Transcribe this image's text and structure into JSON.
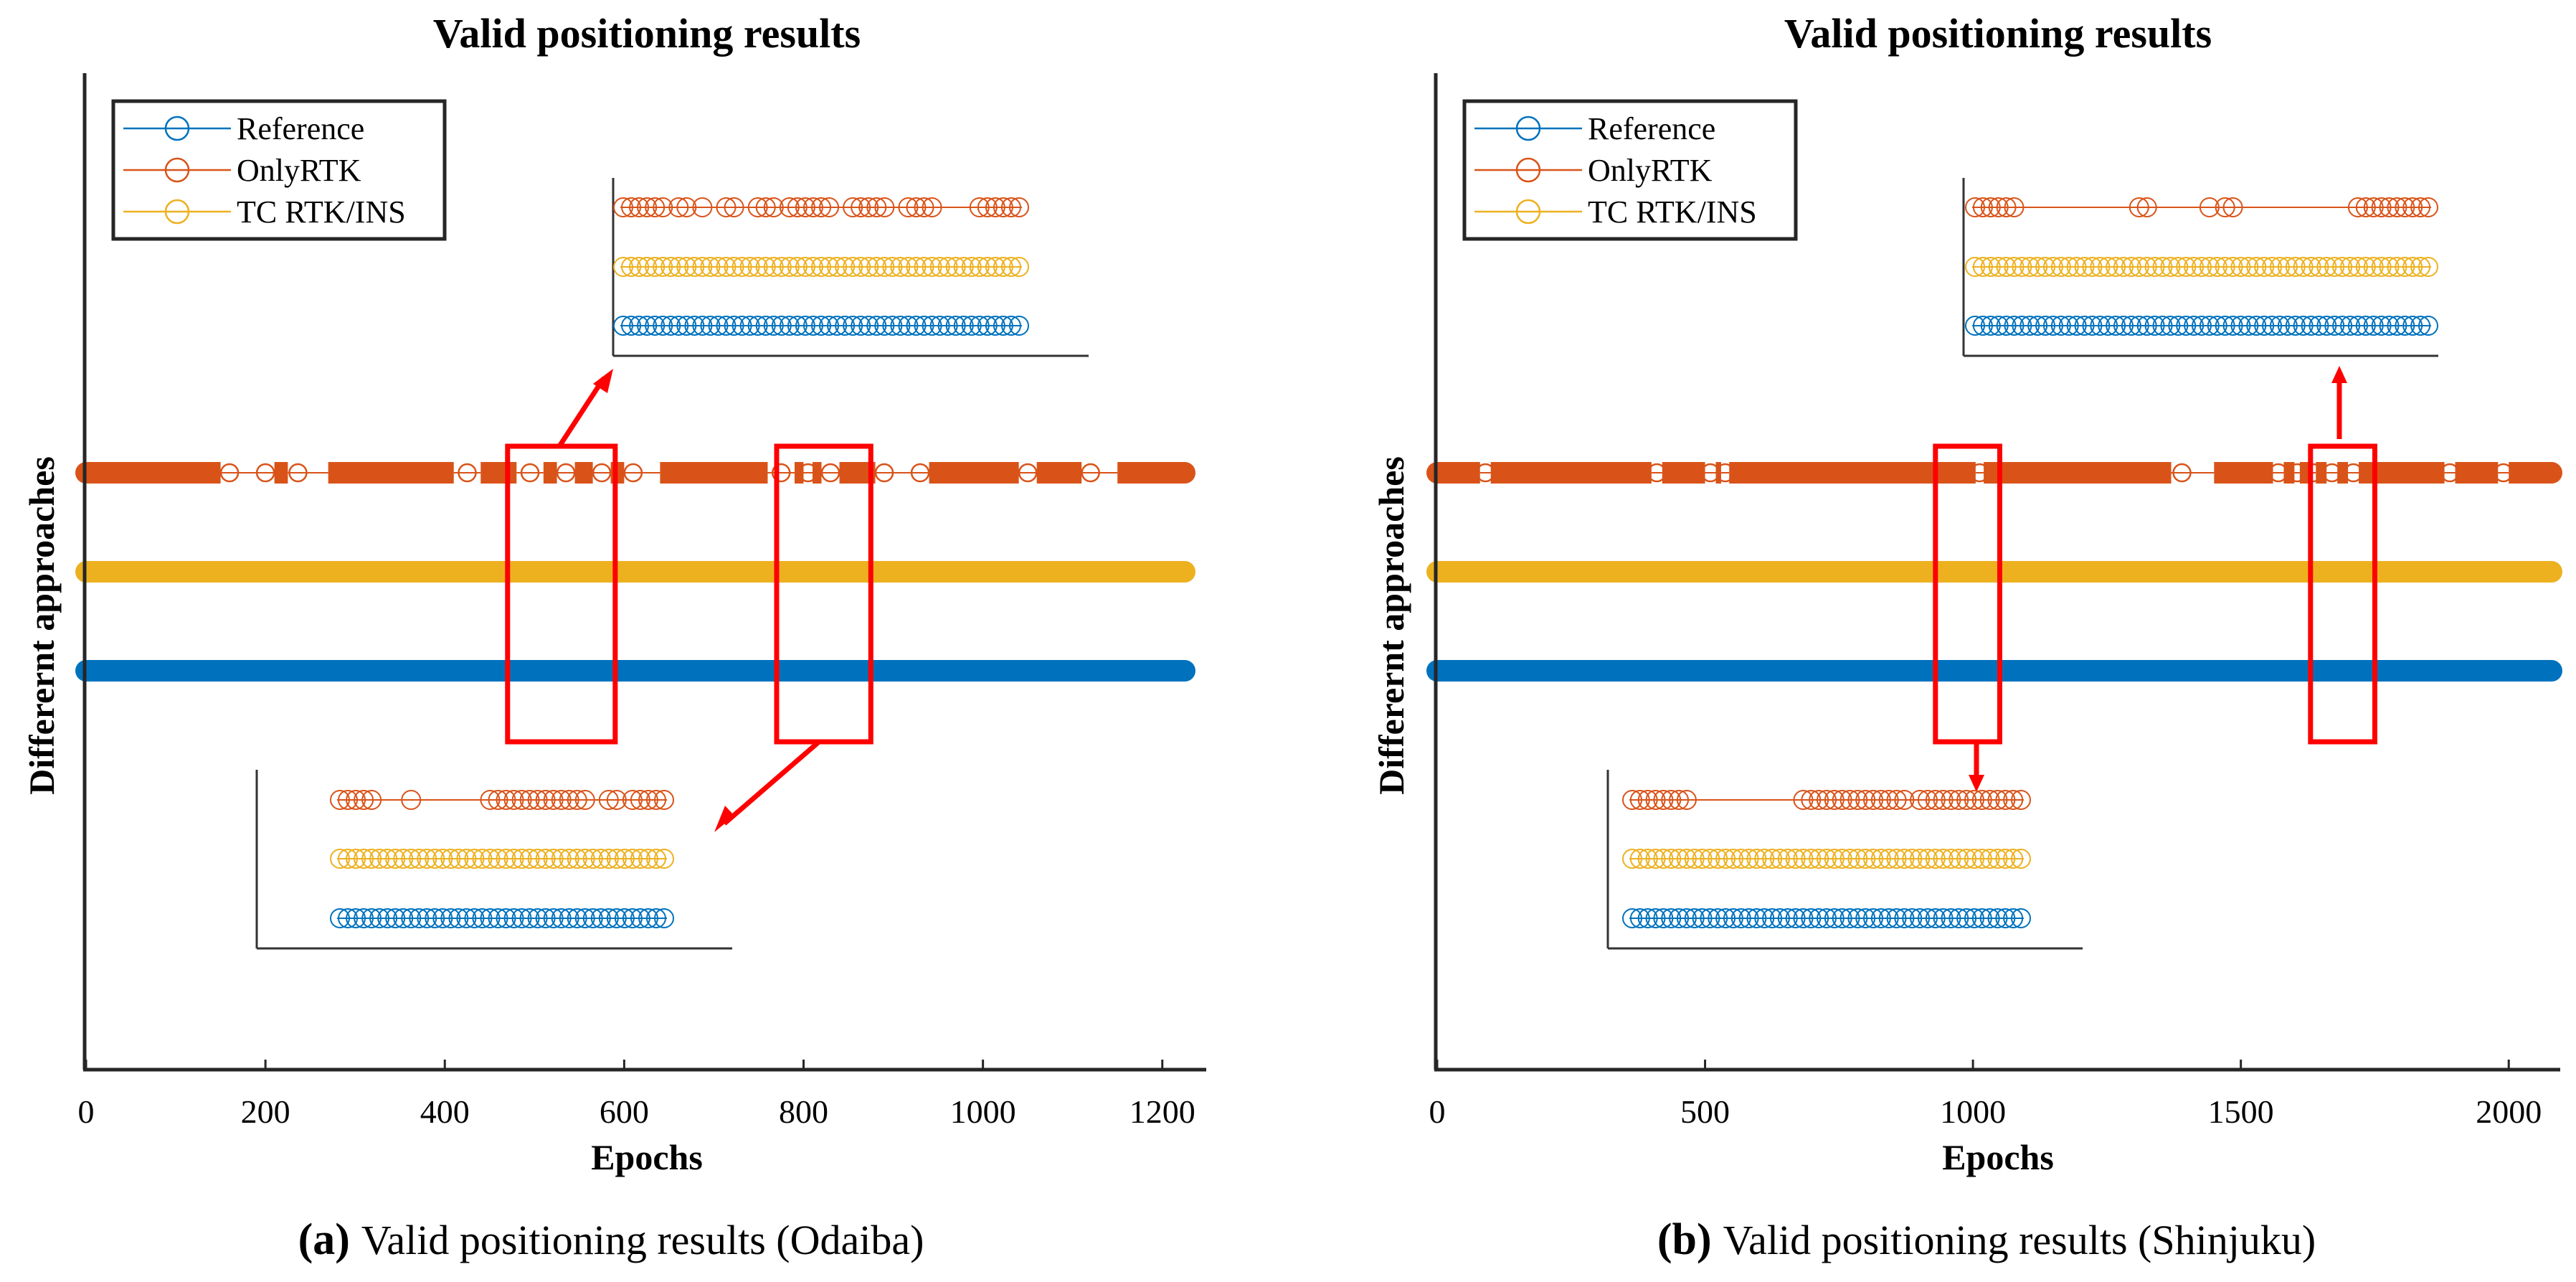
{
  "colors": {
    "reference": "#0072BD",
    "onlyrtk": "#D95319",
    "tc": "#EDB120",
    "highlight": "#FF0000",
    "axis": "#262626"
  },
  "chart_data": [
    {
      "panel": "a",
      "type": "scatter",
      "title": "Valid positioning results",
      "xlabel": "Epochs",
      "ylabel": "Differernt approaches",
      "caption_label": "(a)",
      "caption_text": "Valid positioning results (Odaiba)",
      "xlim": [
        0,
        1250
      ],
      "xticks": [
        0,
        200,
        400,
        600,
        800,
        1000,
        1200
      ],
      "ylim": [
        0,
        1
      ],
      "series": [
        {
          "name": "Reference",
          "color_key": "reference",
          "y": 0.4,
          "x_range": [
            0,
            1225
          ],
          "gaps": []
        },
        {
          "name": "OnlyRTK",
          "color_key": "onlyrtk",
          "y": 0.6,
          "x_range": [
            0,
            1225
          ],
          "gaps": [
            [
              150,
              210
            ],
            [
              225,
              270
            ],
            [
              410,
              440
            ],
            [
              480,
              510
            ],
            [
              525,
              545
            ],
            [
              565,
              585
            ],
            [
              600,
              640
            ],
            [
              760,
              790
            ],
            [
              800,
              810
            ],
            [
              820,
              840
            ],
            [
              880,
              940
            ],
            [
              1040,
              1060
            ],
            [
              1110,
              1150
            ]
          ]
        },
        {
          "name": "TC RTK/INS",
          "color_key": "tc",
          "y": 0.5,
          "x_range": [
            0,
            1225
          ],
          "gaps": []
        }
      ],
      "legend": [
        "Reference",
        "OnlyRTK",
        "TC RTK/INS"
      ],
      "legend_position": "top-left",
      "highlight_boxes": [
        {
          "x": [
            470,
            590
          ]
        },
        {
          "x": [
            770,
            875
          ]
        }
      ]
    },
    {
      "panel": "b",
      "type": "scatter",
      "title": "Valid positioning results",
      "xlabel": "Epochs",
      "ylabel": "Differernt approaches",
      "caption_label": "(b)",
      "caption_text": "Valid positioning results (Shinjuku)",
      "xlim": [
        0,
        2100
      ],
      "xticks": [
        0,
        500,
        1000,
        1500,
        2000
      ],
      "ylim": [
        0,
        1
      ],
      "series": [
        {
          "name": "Reference",
          "color_key": "reference",
          "y": 0.4,
          "x_range": [
            0,
            2080
          ],
          "gaps": []
        },
        {
          "name": "OnlyRTK",
          "color_key": "onlyrtk",
          "y": 0.6,
          "x_range": [
            0,
            2080
          ],
          "gaps": [
            [
              80,
              100
            ],
            [
              400,
              420
            ],
            [
              500,
              520
            ],
            [
              530,
              545
            ],
            [
              1005,
              1020
            ],
            [
              1370,
              1450
            ],
            [
              1560,
              1580
            ],
            [
              1600,
              1610
            ],
            [
              1630,
              1640
            ],
            [
              1660,
              1680
            ],
            [
              1700,
              1720
            ],
            [
              1880,
              1900
            ],
            [
              1980,
              2000
            ]
          ]
        },
        {
          "name": "TC RTK/INS",
          "color_key": "tc",
          "y": 0.5,
          "x_range": [
            0,
            2080
          ],
          "gaps": []
        }
      ],
      "legend": [
        "Reference",
        "OnlyRTK",
        "TC RTK/INS"
      ],
      "legend_position": "top-left",
      "highlight_boxes": [
        {
          "x": [
            930,
            1050
          ]
        },
        {
          "x": [
            1630,
            1750
          ]
        }
      ]
    }
  ]
}
